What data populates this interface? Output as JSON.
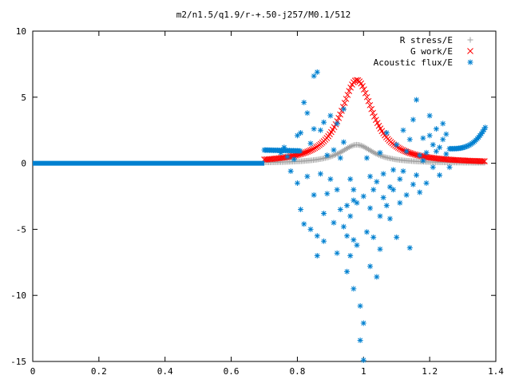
{
  "chart_data": {
    "type": "scatter",
    "title": "m2/n1.5/q1.9/r-+.50-j257/M0.1/512",
    "xlim": [
      0,
      1.4
    ],
    "ylim": [
      -15,
      10
    ],
    "xticks": [
      "0",
      "0.2",
      "0.4",
      "0.6",
      "0.8",
      "1",
      "1.2",
      "1.4"
    ],
    "xtick_values": [
      0,
      0.2,
      0.4,
      0.6,
      0.8,
      1.0,
      1.2,
      1.4
    ],
    "yticks": [
      "10",
      "5",
      "0",
      "-5",
      "-10",
      "-15"
    ],
    "ytick_values": [
      10,
      5,
      0,
      -5,
      -10,
      -15
    ],
    "legend_position": "top-right",
    "grid": false,
    "series": [
      {
        "name": "R stress/E",
        "marker": "plus",
        "color": "#a0a0a0",
        "peak": {
          "x": 0.98,
          "y": 1.4,
          "width": 0.06
        },
        "x_range": [
          0.7,
          1.37
        ]
      },
      {
        "name": "G work/E",
        "marker": "cross",
        "color": "#ff0000",
        "peak": {
          "x": 0.98,
          "y": 6.3,
          "width": 0.06
        },
        "x_range": [
          0.7,
          1.37
        ]
      },
      {
        "name": "Acoustic flux/E",
        "marker": "star",
        "color": "#0080d0",
        "baseline": {
          "x_range": [
            0,
            0.7
          ],
          "y": 0
        },
        "left_plateau": {
          "x_range": [
            0.7,
            0.81
          ],
          "y": 1.0
        },
        "right_plateau": {
          "x_range": [
            1.26,
            1.37
          ],
          "y_start": 1.1,
          "y_end": 2.8
        },
        "scatter_points": [
          [
            0.75,
            0.8
          ],
          [
            0.76,
            1.2
          ],
          [
            0.77,
            0.5
          ],
          [
            0.78,
            -0.6
          ],
          [
            0.79,
            0.3
          ],
          [
            0.8,
            2.1
          ],
          [
            0.8,
            -1.5
          ],
          [
            0.81,
            -3.5
          ],
          [
            0.81,
            2.3
          ],
          [
            0.82,
            4.6
          ],
          [
            0.82,
            -4.6
          ],
          [
            0.83,
            -1.0
          ],
          [
            0.83,
            3.8
          ],
          [
            0.84,
            -5.0
          ],
          [
            0.84,
            1.5
          ],
          [
            0.85,
            -2.4
          ],
          [
            0.85,
            2.6
          ],
          [
            0.85,
            6.6
          ],
          [
            0.86,
            6.9
          ],
          [
            0.86,
            -5.5
          ],
          [
            0.86,
            -7.0
          ],
          [
            0.87,
            2.5
          ],
          [
            0.87,
            -0.8
          ],
          [
            0.88,
            3.1
          ],
          [
            0.88,
            -5.9
          ],
          [
            0.88,
            -3.8
          ],
          [
            0.89,
            0.6
          ],
          [
            0.89,
            -2.3
          ],
          [
            0.9,
            -1.2
          ],
          [
            0.9,
            3.6
          ],
          [
            0.91,
            -4.5
          ],
          [
            0.91,
            1.0
          ],
          [
            0.92,
            -2.0
          ],
          [
            0.92,
            -6.8
          ],
          [
            0.93,
            -3.5
          ],
          [
            0.93,
            0.4
          ],
          [
            0.94,
            -4.8
          ],
          [
            0.94,
            1.6
          ],
          [
            0.95,
            -5.5
          ],
          [
            0.95,
            -3.2
          ],
          [
            0.95,
            -8.2
          ],
          [
            0.96,
            -7.0
          ],
          [
            0.96,
            -1.2
          ],
          [
            0.96,
            -4.0
          ],
          [
            0.97,
            -2.8
          ],
          [
            0.97,
            -5.8
          ],
          [
            0.97,
            -9.5
          ],
          [
            0.98,
            -3.0
          ],
          [
            0.98,
            -6.2
          ],
          [
            0.99,
            -10.8
          ],
          [
            0.99,
            -13.4
          ],
          [
            1.0,
            -14.9
          ],
          [
            1.0,
            -12.1
          ],
          [
            1.0,
            -2.5
          ],
          [
            1.01,
            -5.2
          ],
          [
            1.01,
            0.4
          ],
          [
            1.02,
            -3.4
          ],
          [
            1.02,
            -7.8
          ],
          [
            1.03,
            -2.0
          ],
          [
            1.03,
            -5.6
          ],
          [
            1.04,
            -1.4
          ],
          [
            1.04,
            -8.6
          ],
          [
            1.05,
            -4.0
          ],
          [
            1.05,
            -6.5
          ],
          [
            1.06,
            -2.6
          ],
          [
            1.06,
            -0.8
          ],
          [
            1.07,
            -3.2
          ],
          [
            1.07,
            2.3
          ],
          [
            1.08,
            -4.2
          ],
          [
            1.08,
            -1.8
          ],
          [
            1.09,
            -2.0
          ],
          [
            1.09,
            -0.5
          ],
          [
            1.1,
            -5.6
          ],
          [
            1.1,
            1.4
          ],
          [
            1.11,
            -3.0
          ],
          [
            1.11,
            -1.2
          ],
          [
            1.12,
            2.5
          ],
          [
            1.12,
            -0.6
          ],
          [
            1.13,
            0.9
          ],
          [
            1.13,
            -2.4
          ],
          [
            1.14,
            1.8
          ],
          [
            1.14,
            -6.4
          ],
          [
            1.15,
            -1.6
          ],
          [
            1.15,
            3.3
          ],
          [
            1.16,
            4.8
          ],
          [
            1.16,
            -0.9
          ],
          [
            1.17,
            0.6
          ],
          [
            1.17,
            -2.2
          ],
          [
            1.18,
            1.9
          ],
          [
            1.18,
            0.2
          ],
          [
            1.19,
            0.8
          ],
          [
            1.19,
            -1.5
          ],
          [
            1.2,
            2.1
          ],
          [
            1.2,
            3.6
          ],
          [
            1.21,
            1.4
          ],
          [
            1.21,
            -0.3
          ],
          [
            1.22,
            2.6
          ],
          [
            1.22,
            0.9
          ],
          [
            1.23,
            1.2
          ],
          [
            1.23,
            -0.9
          ],
          [
            1.24,
            1.8
          ],
          [
            1.24,
            3.0
          ],
          [
            1.25,
            0.7
          ],
          [
            1.25,
            2.2
          ],
          [
            1.26,
            -0.3
          ],
          [
            0.92,
            3.0
          ],
          [
            0.94,
            4.1
          ],
          [
            0.97,
            -2.0
          ],
          [
            1.02,
            -1.0
          ],
          [
            1.05,
            0.8
          ]
        ]
      }
    ]
  }
}
